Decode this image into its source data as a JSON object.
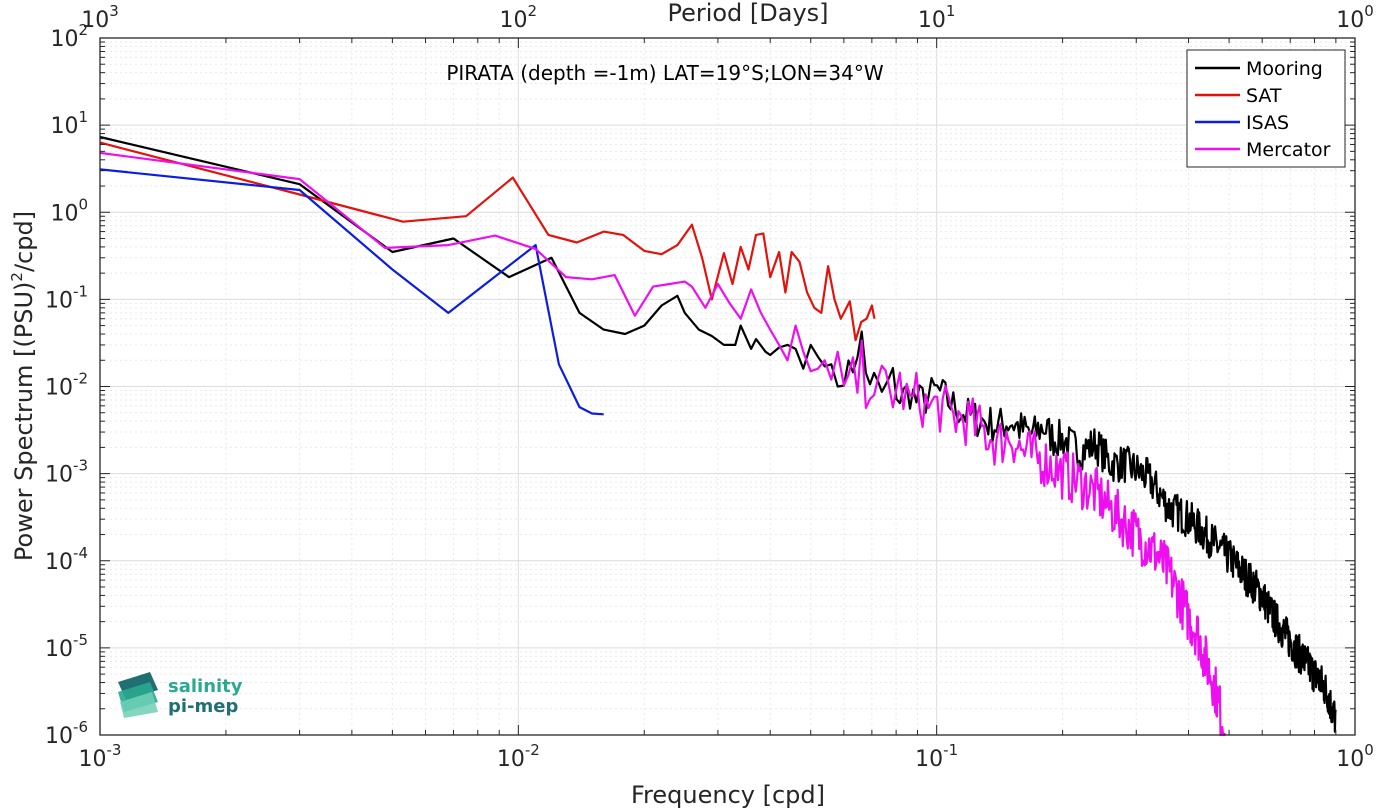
{
  "chart_data": {
    "type": "line",
    "title": "PIRATA (depth =-1m) LAT=19°S;LON=34°W",
    "xlabel": "Frequency [cpd]",
    "ylabel": "Power Spectrum [(PSU)^2/cpd]",
    "x2label": "Period [Days]",
    "xscale": "log",
    "yscale": "log",
    "xlim": [
      0.001,
      1
    ],
    "ylim": [
      1e-06,
      100
    ],
    "grid": true,
    "legend_position": "top-right",
    "x_ticks": [
      {
        "value": 0.001,
        "base": "10",
        "exp": "-3"
      },
      {
        "value": 0.01,
        "base": "10",
        "exp": "-2"
      },
      {
        "value": 0.1,
        "base": "10",
        "exp": "-1"
      },
      {
        "value": 1,
        "base": "10",
        "exp": "0"
      }
    ],
    "x2_ticks": [
      {
        "value": 0.001,
        "base": "10",
        "exp": "3"
      },
      {
        "value": 0.01,
        "base": "10",
        "exp": "2"
      },
      {
        "value": 0.1,
        "base": "10",
        "exp": "1"
      },
      {
        "value": 1,
        "base": "10",
        "exp": "0"
      }
    ],
    "y_ticks": [
      {
        "value": 100,
        "base": "10",
        "exp": "2"
      },
      {
        "value": 10,
        "base": "10",
        "exp": "1"
      },
      {
        "value": 1,
        "base": "10",
        "exp": "0"
      },
      {
        "value": 0.1,
        "base": "10",
        "exp": "-1"
      },
      {
        "value": 0.01,
        "base": "10",
        "exp": "-2"
      },
      {
        "value": 0.001,
        "base": "10",
        "exp": "-3"
      },
      {
        "value": 0.0001,
        "base": "10",
        "exp": "-4"
      },
      {
        "value": 1e-05,
        "base": "10",
        "exp": "-5"
      },
      {
        "value": 1e-06,
        "base": "10",
        "exp": "-6"
      }
    ],
    "series": [
      {
        "name": "Mooring",
        "color": "#000000",
        "x": [
          0.001,
          0.003,
          0.005,
          0.007,
          0.0095,
          0.012,
          0.014,
          0.016,
          0.018,
          0.02,
          0.022,
          0.024,
          0.025,
          0.027,
          0.029,
          0.031,
          0.033,
          0.034,
          0.036,
          0.037,
          0.039,
          0.04,
          0.042,
          0.044,
          0.046,
          0.048,
          0.05,
          0.052,
          0.054,
          0.056,
          0.058,
          0.06,
          0.062,
          0.064,
          0.066,
          0.068,
          0.07,
          0.072,
          0.075,
          0.078,
          0.082,
          0.086,
          0.09,
          0.095,
          0.1,
          0.11,
          0.12,
          0.13,
          0.14,
          0.15,
          0.16,
          0.17,
          0.18,
          0.19,
          0.2,
          0.22,
          0.24,
          0.26,
          0.28,
          0.3,
          0.32,
          0.34,
          0.36,
          0.38,
          0.4,
          0.43,
          0.46,
          0.5,
          0.53,
          0.56,
          0.6,
          0.63,
          0.66,
          0.7,
          0.73,
          0.76,
          0.8,
          0.83,
          0.86,
          0.88,
          0.9
        ],
        "y": [
          7.3,
          2.1,
          0.35,
          0.5,
          0.18,
          0.3,
          0.07,
          0.045,
          0.04,
          0.05,
          0.085,
          0.11,
          0.07,
          0.045,
          0.038,
          0.03,
          0.03,
          0.05,
          0.027,
          0.035,
          0.025,
          0.023,
          0.028,
          0.03,
          0.027,
          0.016,
          0.03,
          0.022,
          0.017,
          0.018,
          0.01,
          0.017,
          0.012,
          0.025,
          0.038,
          0.012,
          0.013,
          0.009,
          0.008,
          0.013,
          0.007,
          0.009,
          0.0065,
          0.0075,
          0.009,
          0.006,
          0.0045,
          0.004,
          0.0035,
          0.004,
          0.0032,
          0.0028,
          0.0035,
          0.0025,
          0.0025,
          0.0018,
          0.0022,
          0.0013,
          0.0013,
          0.0011,
          0.0009,
          0.0006,
          0.0004,
          0.00035,
          0.0003,
          0.00022,
          0.00016,
          0.00011,
          8e-05,
          6e-05,
          4e-05,
          2.5e-05,
          1.8e-05,
          1.2e-05,
          9e-06,
          7e-06,
          5e-06,
          4e-06,
          3e-06,
          2e-06,
          1.5e-06
        ],
        "noise": 0.22,
        "noise_from": 0.06
      },
      {
        "name": "SAT",
        "color": "#e3120b",
        "x": [
          0.001,
          0.003,
          0.0053,
          0.0075,
          0.0097,
          0.0118,
          0.0138,
          0.016,
          0.0178,
          0.02,
          0.022,
          0.024,
          0.026,
          0.0275,
          0.029,
          0.031,
          0.0325,
          0.034,
          0.0355,
          0.037,
          0.0385,
          0.04,
          0.042,
          0.0435,
          0.045,
          0.047,
          0.049,
          0.051,
          0.053,
          0.055,
          0.057,
          0.059,
          0.062,
          0.064,
          0.066,
          0.068,
          0.07,
          0.071
        ],
        "y": [
          6.3,
          1.6,
          0.78,
          0.9,
          2.5,
          0.55,
          0.45,
          0.6,
          0.55,
          0.36,
          0.33,
          0.42,
          0.72,
          0.3,
          0.1,
          0.34,
          0.15,
          0.4,
          0.22,
          0.55,
          0.57,
          0.18,
          0.35,
          0.12,
          0.35,
          0.27,
          0.12,
          0.08,
          0.07,
          0.24,
          0.1,
          0.06,
          0.095,
          0.034,
          0.055,
          0.06,
          0.085,
          0.06
        ]
      },
      {
        "name": "ISAS",
        "color": "#0b1de0",
        "x": [
          0.001,
          0.003,
          0.005,
          0.0068,
          0.011,
          0.0125,
          0.014,
          0.015,
          0.016
        ],
        "y": [
          3.1,
          1.8,
          0.22,
          0.07,
          0.42,
          0.018,
          0.0058,
          0.0049,
          0.0048
        ]
      },
      {
        "name": "Mercator",
        "color": "#ee0ff0",
        "x": [
          0.001,
          0.003,
          0.0048,
          0.0068,
          0.0088,
          0.011,
          0.013,
          0.015,
          0.017,
          0.019,
          0.021,
          0.023,
          0.025,
          0.026,
          0.028,
          0.03,
          0.032,
          0.034,
          0.036,
          0.038,
          0.04,
          0.042,
          0.044,
          0.046,
          0.048,
          0.05,
          0.052,
          0.054,
          0.056,
          0.058,
          0.06,
          0.062,
          0.064,
          0.066,
          0.068,
          0.07,
          0.072,
          0.075,
          0.078,
          0.082,
          0.086,
          0.09,
          0.095,
          0.1,
          0.11,
          0.12,
          0.13,
          0.14,
          0.15,
          0.16,
          0.17,
          0.18,
          0.19,
          0.2,
          0.22,
          0.24,
          0.26,
          0.28,
          0.3,
          0.32,
          0.34,
          0.36,
          0.38,
          0.4,
          0.42,
          0.44,
          0.46,
          0.48,
          0.49
        ],
        "y": [
          4.8,
          2.4,
          0.39,
          0.42,
          0.54,
          0.38,
          0.18,
          0.17,
          0.19,
          0.065,
          0.14,
          0.15,
          0.16,
          0.14,
          0.08,
          0.15,
          0.09,
          0.06,
          0.13,
          0.07,
          0.045,
          0.03,
          0.02,
          0.05,
          0.025,
          0.015,
          0.016,
          0.02,
          0.012,
          0.025,
          0.006,
          0.015,
          0.009,
          0.018,
          0.01,
          0.014,
          0.007,
          0.012,
          0.008,
          0.01,
          0.006,
          0.008,
          0.0055,
          0.006,
          0.0045,
          0.004,
          0.003,
          0.0022,
          0.0028,
          0.0018,
          0.0016,
          0.0014,
          0.0012,
          0.001,
          0.0008,
          0.0006,
          0.0004,
          0.00028,
          0.0002,
          0.00015,
          0.00011,
          7e-05,
          4e-05,
          2.2e-05,
          1.5e-05,
          7e-06,
          4e-06,
          1.6e-06,
          1e-06
        ],
        "noise": 0.3,
        "noise_from": 0.06
      }
    ]
  },
  "logo": {
    "line1": "salinity",
    "line2": "pi-mep"
  },
  "colors": {
    "axis": "#262626",
    "grid_major": "#dcdcdc",
    "grid_minor": "#e9e9e9",
    "logo_teal": "#29a98f",
    "logo_dark": "#1f6f73"
  }
}
